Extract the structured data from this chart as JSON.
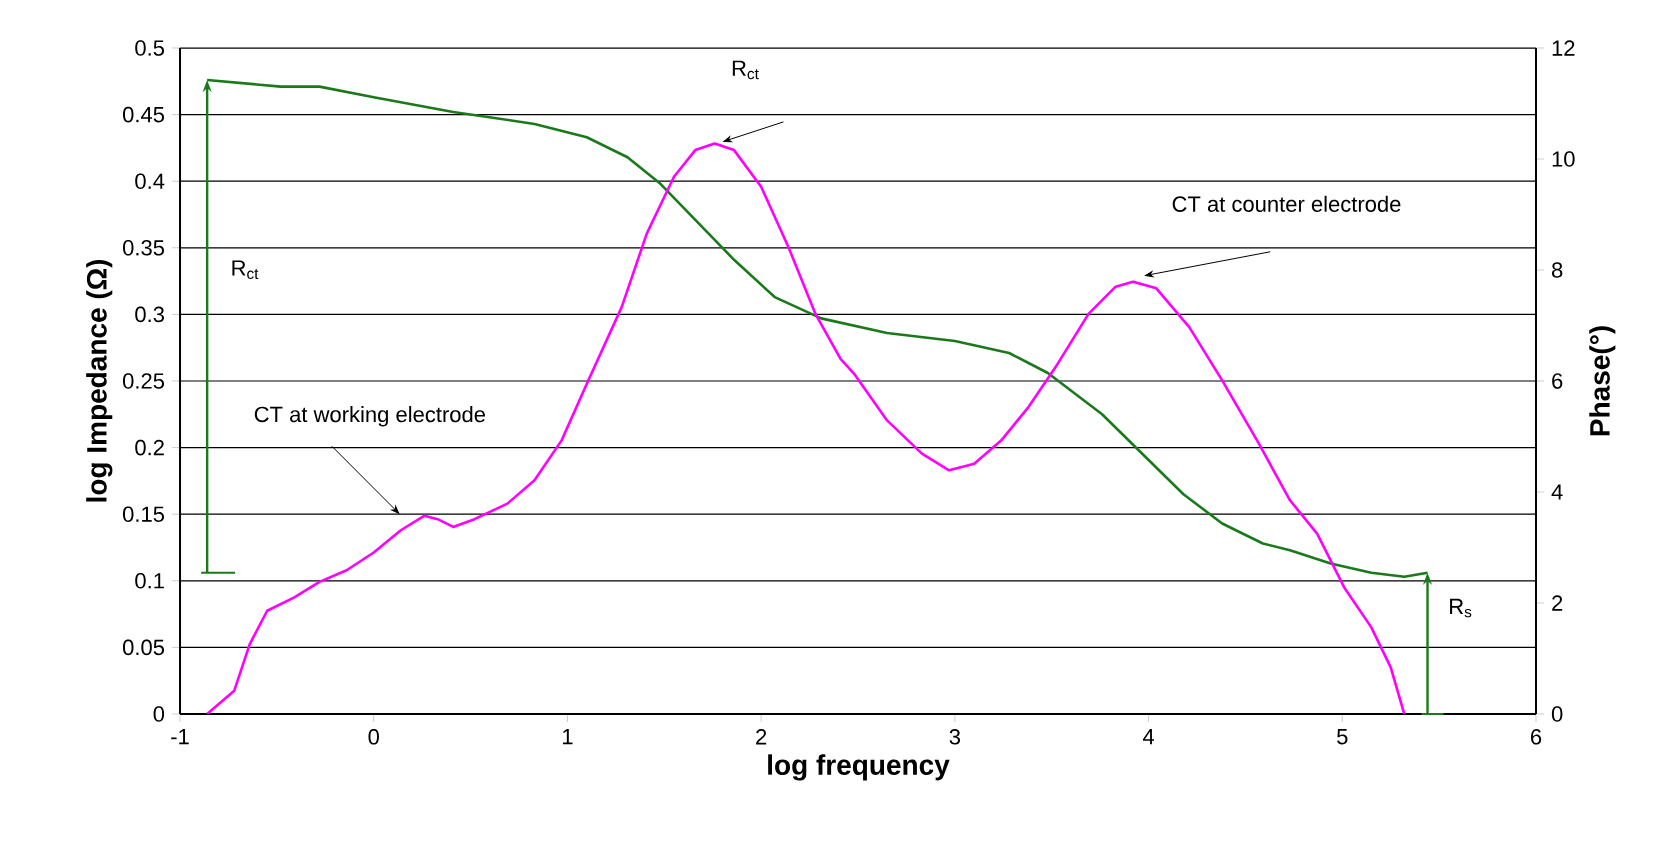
{
  "chart_data": {
    "type": "line",
    "xlabel": "log frequency",
    "ylabel": "log Impedance (Ω)",
    "y2label": "Phase(°)",
    "xlim": [
      -1,
      6
    ],
    "xticks": [
      -1,
      0,
      1,
      2,
      3,
      4,
      5,
      6
    ],
    "ylim": [
      0,
      0.5
    ],
    "yticks": [
      0,
      0.05,
      0.1,
      0.15,
      0.2,
      0.25,
      0.3,
      0.35,
      0.4,
      0.45,
      0.5
    ],
    "y2lim": [
      0,
      12
    ],
    "y2ticks": [
      0,
      2,
      4,
      6,
      8,
      10,
      12
    ],
    "grid": "y",
    "marker": "none",
    "line_style": "solid",
    "series": [
      {
        "color": "#1a7a1a",
        "x": [
          -0.86,
          -0.48,
          -0.28,
          0.0,
          0.41,
          0.83,
          1.1,
          1.31,
          1.48,
          1.66,
          1.86,
          2.07,
          2.31,
          2.65,
          3.0,
          3.28,
          3.48,
          3.76,
          3.97,
          4.18,
          4.38,
          4.59,
          4.73,
          4.94,
          5.15,
          5.32,
          5.44
        ],
        "values": [
          0.476,
          0.471,
          0.471,
          0.463,
          0.452,
          0.443,
          0.433,
          0.418,
          0.398,
          0.371,
          0.341,
          0.313,
          0.297,
          0.286,
          0.28,
          0.271,
          0.256,
          0.225,
          0.195,
          0.165,
          0.143,
          0.128,
          0.123,
          0.113,
          0.106,
          0.103,
          0.106
        ]
      },
      {
        "color": "#ff00ff",
        "axis": "y2",
        "x": [
          -0.86,
          -0.72,
          -0.64,
          -0.55,
          -0.41,
          -0.28,
          -0.14,
          0.0,
          0.14,
          0.26,
          0.33,
          0.41,
          0.52,
          0.69,
          0.83,
          0.97,
          1.1,
          1.28,
          1.41,
          1.55,
          1.66,
          1.76,
          1.86,
          2.0,
          2.14,
          2.28,
          2.41,
          2.48,
          2.65,
          2.83,
          2.97,
          3.1,
          3.24,
          3.38,
          3.52,
          3.69,
          3.83,
          3.92,
          4.04,
          4.21,
          4.38,
          4.56,
          4.73,
          4.87,
          5.01,
          5.15,
          5.25,
          5.32
        ],
        "values": [
          0,
          0.42,
          1.26,
          1.86,
          2.1,
          2.38,
          2.59,
          2.91,
          3.31,
          3.57,
          3.51,
          3.37,
          3.51,
          3.79,
          4.21,
          4.93,
          5.95,
          7.33,
          8.66,
          9.68,
          10.16,
          10.28,
          10.16,
          9.5,
          8.42,
          7.21,
          6.4,
          6.13,
          5.29,
          4.69,
          4.39,
          4.51,
          4.93,
          5.53,
          6.25,
          7.21,
          7.7,
          7.79,
          7.67,
          6.97,
          6.01,
          4.93,
          3.85,
          3.25,
          2.28,
          1.56,
          0.84,
          0
        ]
      }
    ],
    "annotations": [
      "R$_{ct}$",
      "R$_{ct}$",
      "CT at working electrode",
      "CT at counter electrode",
      "R$_{s}$"
    ]
  }
}
